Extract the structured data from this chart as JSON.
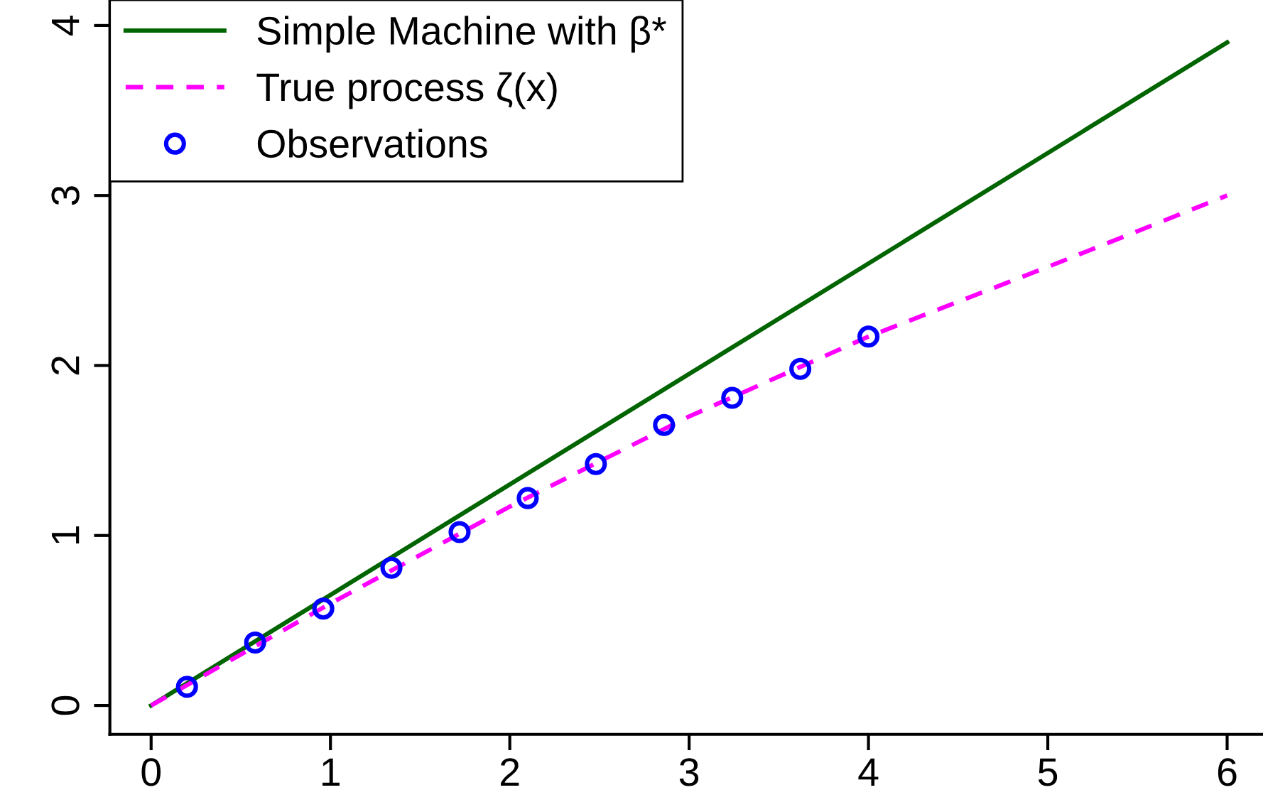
{
  "chart_data": {
    "type": "line",
    "xlim": [
      -0.23,
      6.2
    ],
    "ylim": [
      -0.17,
      4.15
    ],
    "xticks": [
      0,
      1,
      2,
      3,
      4,
      5,
      6
    ],
    "yticks": [
      0,
      1,
      2,
      3,
      4
    ],
    "grid": false,
    "legend": "top left",
    "series": [
      {
        "name": "Simple Machine with β*",
        "color": "#006400",
        "line_style": "solid",
        "marker": "none",
        "x": [
          0,
          3,
          6
        ],
        "values": [
          0,
          1.95,
          3.9
        ]
      },
      {
        "name": "True process ζ(x)",
        "color": "#ff00ff",
        "line_style": "dashed",
        "marker": "none",
        "x": [
          0,
          1,
          2,
          3,
          4,
          5,
          6
        ],
        "values": [
          0,
          0.6,
          1.17,
          1.7,
          2.17,
          2.58,
          3.0
        ]
      },
      {
        "name": "Observations",
        "type": "scatter",
        "color": "#0000ff",
        "marker": "circle",
        "x": [
          0.2,
          0.58,
          0.96,
          1.34,
          1.72,
          2.1,
          2.48,
          2.86,
          3.24,
          3.62,
          4.0
        ],
        "values": [
          0.11,
          0.37,
          0.57,
          0.81,
          1.02,
          1.22,
          1.42,
          1.65,
          1.81,
          1.98,
          2.17
        ]
      }
    ]
  }
}
